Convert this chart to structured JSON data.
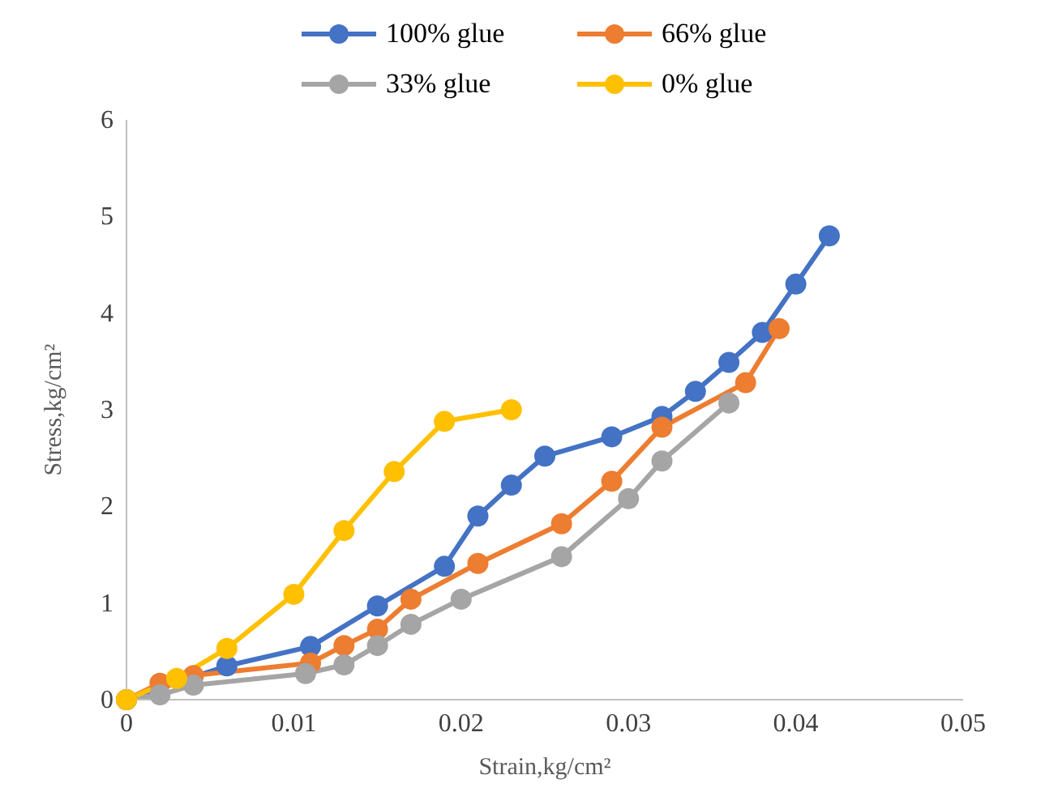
{
  "chart_data": {
    "type": "line",
    "xlabel": "Strain,kg/cm²",
    "ylabel": "Stress,kg/cm²",
    "xlim": [
      0,
      0.05
    ],
    "xticks": [
      {
        "value": 0,
        "label": "0"
      },
      {
        "value": 0.01,
        "label": "0.01"
      },
      {
        "value": 0.02,
        "label": "0.02"
      },
      {
        "value": 0.03,
        "label": "0.03"
      },
      {
        "value": 0.04,
        "label": "0.04"
      },
      {
        "value": 0.05,
        "label": "0.05"
      }
    ],
    "ylim": [
      0,
      6
    ],
    "yticks": [
      0,
      1,
      2,
      3,
      4,
      5,
      6
    ],
    "grid": false,
    "legend": "top",
    "marker": "circle",
    "line_style": "solid",
    "series": [
      {
        "name": "100% glue",
        "color": "#4472c4",
        "x": [
          0,
          0.006,
          0.011,
          0.015,
          0.019,
          0.021,
          0.023,
          0.025,
          0.029,
          0.032,
          0.034,
          0.036,
          0.038,
          0.04,
          0.042
        ],
        "values": [
          0,
          0.35,
          0.55,
          0.97,
          1.38,
          1.9,
          2.22,
          2.52,
          2.72,
          2.93,
          3.19,
          3.49,
          3.8,
          4.3,
          4.8
        ]
      },
      {
        "name": "66% glue",
        "color": "#ed7d31",
        "x": [
          0,
          0.002,
          0.004,
          0.011,
          0.013,
          0.015,
          0.017,
          0.021,
          0.026,
          0.029,
          0.032,
          0.037,
          0.039
        ],
        "values": [
          0,
          0.17,
          0.25,
          0.38,
          0.56,
          0.73,
          1.04,
          1.41,
          1.82,
          2.26,
          2.82,
          3.28,
          3.84
        ]
      },
      {
        "name": "33% glue",
        "color": "#a5a5a5",
        "x": [
          0,
          0.002,
          0.004,
          0.0107,
          0.013,
          0.015,
          0.017,
          0.02,
          0.026,
          0.03,
          0.032,
          0.036
        ],
        "values": [
          0,
          0.05,
          0.15,
          0.27,
          0.36,
          0.56,
          0.78,
          1.04,
          1.48,
          2.08,
          2.47,
          3.07
        ]
      },
      {
        "name": "0% glue",
        "color": "#ffc000",
        "x": [
          0,
          0.003,
          0.006,
          0.01,
          0.013,
          0.016,
          0.019,
          0.023
        ],
        "values": [
          0,
          0.22,
          0.53,
          1.09,
          1.75,
          2.36,
          2.88,
          3.0
        ]
      }
    ]
  }
}
